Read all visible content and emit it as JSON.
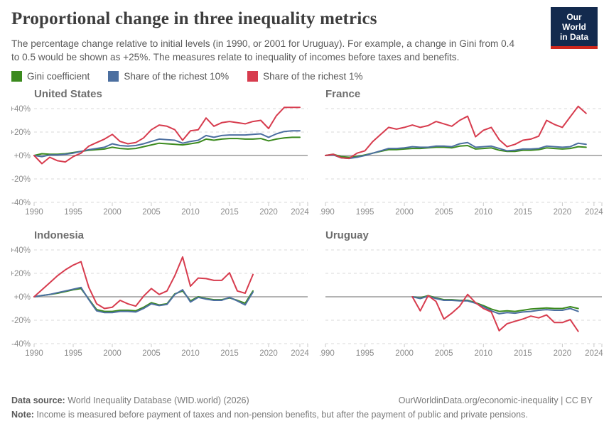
{
  "header": {
    "title": "Proportional change in three inequality metrics",
    "subtitle": "The percentage change relative to initial levels (in 1990, or 2001 for Uruguay). For example, a change in Gini from 0.4 to 0.5 would be shown as +25%. The measures relate to inequality of incomes before taxes and benefits.",
    "logo": {
      "line1": "Our World",
      "line2": "in Data",
      "bg_color": "#132A4E",
      "accent_color": "#CE261C"
    }
  },
  "legend": [
    {
      "label": "Gini coefficient",
      "color": "#3B8A1E"
    },
    {
      "label": "Share of the richest 10%",
      "color": "#4C6FA0"
    },
    {
      "label": "Share of the richest 1%",
      "color": "#D73C4E"
    }
  ],
  "axis": {
    "y_ticks": [
      "+40%",
      "+20%",
      "+0%",
      "-20%",
      "-40%"
    ],
    "y_values": [
      40,
      20,
      0,
      -20,
      -40
    ],
    "x_ticks": [
      1990,
      1995,
      2000,
      2005,
      2010,
      2015,
      2020,
      2024
    ],
    "x_range": [
      1990,
      2025
    ],
    "ylim": [
      -45,
      45
    ],
    "grid": "dashed horizontal lines at ±20% and ±40%, solid gray zero line"
  },
  "chart_data": [
    {
      "type": "line",
      "title": "United States",
      "x": [
        1990,
        1991,
        1992,
        1993,
        1994,
        1995,
        1996,
        1997,
        1998,
        1999,
        2000,
        2001,
        2002,
        2003,
        2004,
        2005,
        2006,
        2007,
        2008,
        2009,
        2010,
        2011,
        2012,
        2013,
        2014,
        2015,
        2016,
        2017,
        2018,
        2019,
        2020,
        2021,
        2022,
        2023,
        2024
      ],
      "series": [
        {
          "name": "Gini coefficient",
          "color": "#3B8A1E",
          "values": [
            0,
            1.5,
            1,
            1,
            1.5,
            2.5,
            3.5,
            4.5,
            5,
            5.5,
            7,
            6,
            5.5,
            6,
            7.5,
            9,
            10.5,
            10,
            9.5,
            9,
            10,
            11,
            14,
            13,
            14,
            14.5,
            14.5,
            14,
            14,
            14.5,
            12.5,
            14,
            15,
            15.5,
            15.5
          ]
        },
        {
          "name": "Share of the richest 10%",
          "color": "#4C6FA0",
          "values": [
            0,
            -1,
            0.5,
            0.5,
            1,
            2,
            3.5,
            5,
            6,
            7,
            10,
            8.5,
            8,
            8.5,
            10,
            12,
            14,
            13.5,
            13,
            10.5,
            12,
            13,
            17,
            15.5,
            17,
            17.5,
            17.5,
            17.5,
            18,
            18.5,
            15.5,
            18.5,
            20.5,
            21,
            21
          ]
        },
        {
          "name": "Share of the richest 1%",
          "color": "#D73C4E",
          "values": [
            0,
            -7,
            -1.5,
            -4.5,
            -5.5,
            -1,
            2,
            8,
            11,
            14,
            18,
            12,
            10,
            11,
            15,
            22,
            26,
            25,
            22,
            13,
            21,
            22,
            32,
            25,
            28,
            29,
            28,
            27,
            29,
            30,
            23,
            34,
            41,
            41,
            41
          ]
        }
      ]
    },
    {
      "type": "line",
      "title": "France",
      "x": [
        1990,
        1991,
        1992,
        1993,
        1994,
        1995,
        1996,
        1997,
        1998,
        1999,
        2000,
        2001,
        2002,
        2003,
        2004,
        2005,
        2006,
        2007,
        2008,
        2009,
        2010,
        2011,
        2012,
        2013,
        2014,
        2015,
        2016,
        2017,
        2018,
        2019,
        2020,
        2021,
        2022,
        2023
      ],
      "series": [
        {
          "name": "Gini coefficient",
          "color": "#3B8A1E",
          "values": [
            0,
            1,
            -1,
            -1.5,
            -1,
            0.5,
            2,
            3.5,
            5,
            5,
            5.5,
            6,
            6,
            6.5,
            7,
            7,
            6.5,
            8,
            8.5,
            5.5,
            6,
            6.5,
            4.5,
            3.5,
            3.5,
            4.5,
            4.5,
            5,
            6.5,
            6,
            5.5,
            6,
            7.5,
            7
          ]
        },
        {
          "name": "Share of the richest 10%",
          "color": "#4C6FA0",
          "values": [
            0,
            0.5,
            -2,
            -2.5,
            -1.5,
            0,
            2,
            4,
            6,
            6,
            6.5,
            7.5,
            7,
            7,
            8,
            8,
            7.5,
            10,
            11,
            7,
            7.5,
            8,
            6,
            4,
            4.5,
            5.5,
            5.5,
            6,
            8,
            7.5,
            7,
            7.5,
            10.5,
            9.5
          ]
        },
        {
          "name": "Share of the richest 1%",
          "color": "#D73C4E",
          "values": [
            0,
            1,
            -2,
            -2.5,
            2,
            4,
            12,
            18,
            24,
            22.5,
            24,
            26,
            24,
            25.5,
            29,
            27,
            25,
            30,
            33.5,
            16,
            21.5,
            24,
            13.5,
            7.5,
            9.5,
            13,
            14,
            16.5,
            30,
            26.5,
            24,
            33,
            42,
            36
          ]
        }
      ]
    },
    {
      "type": "line",
      "title": "Indonesia",
      "x": [
        1990,
        1991,
        1992,
        1993,
        1994,
        1995,
        1996,
        1997,
        1998,
        1999,
        2000,
        2001,
        2002,
        2003,
        2004,
        2005,
        2006,
        2007,
        2008,
        2009,
        2010,
        2011,
        2012,
        2013,
        2014,
        2015,
        2016,
        2017,
        2018
      ],
      "series": [
        {
          "name": "Gini coefficient",
          "color": "#3B8A1E",
          "values": [
            0,
            1,
            2,
            3,
            4.5,
            6,
            7,
            -2,
            -11,
            -12.5,
            -12.5,
            -11.5,
            -11.5,
            -12,
            -9,
            -5,
            -7,
            -6,
            2.5,
            5,
            -3.5,
            0,
            -1.5,
            -2.5,
            -2.5,
            -1,
            -3,
            -5.5,
            5
          ]
        },
        {
          "name": "Share of the richest 10%",
          "color": "#4C6FA0",
          "values": [
            0,
            1,
            2,
            3.5,
            5,
            6.5,
            8,
            -2.5,
            -12,
            -13.5,
            -13.5,
            -12.5,
            -12.5,
            -13,
            -10,
            -6,
            -7.5,
            -6.5,
            2,
            6,
            -4.5,
            -0.5,
            -2,
            -3,
            -3,
            -0.5,
            -3.5,
            -7,
            4
          ]
        },
        {
          "name": "Share of the richest 1%",
          "color": "#D73C4E",
          "values": [
            0,
            6,
            12,
            18,
            23,
            27,
            30,
            8,
            -6,
            -10,
            -9,
            -3,
            -6,
            -8,
            0.5,
            7,
            2,
            5,
            18,
            34,
            9,
            16,
            15.5,
            14,
            14,
            20.5,
            5,
            3,
            19
          ]
        }
      ]
    },
    {
      "type": "line",
      "title": "Uruguay",
      "x": [
        2001,
        2002,
        2003,
        2004,
        2005,
        2006,
        2007,
        2008,
        2009,
        2010,
        2011,
        2012,
        2013,
        2014,
        2015,
        2016,
        2017,
        2018,
        2019,
        2020,
        2021,
        2022
      ],
      "series": [
        {
          "name": "Gini coefficient",
          "color": "#3B8A1E",
          "values": [
            0,
            -1,
            1,
            -1,
            -2.5,
            -2.5,
            -3,
            -3,
            -5,
            -7.5,
            -10.5,
            -12.5,
            -12,
            -12.5,
            -11.5,
            -10.5,
            -10,
            -9.5,
            -10,
            -10,
            -8.5,
            -10
          ]
        },
        {
          "name": "Share of the richest 10%",
          "color": "#4C6FA0",
          "values": [
            0,
            -1.5,
            0.5,
            -1.5,
            -3,
            -3,
            -3.5,
            -3.5,
            -5.5,
            -8.5,
            -12,
            -14.5,
            -13.5,
            -14,
            -13,
            -12.5,
            -11.5,
            -11,
            -11.5,
            -11.5,
            -10,
            -12.5
          ]
        },
        {
          "name": "Share of the richest 1%",
          "color": "#D73C4E",
          "values": [
            0,
            -12,
            1,
            -4,
            -19,
            -14,
            -8,
            2,
            -5,
            -10,
            -13,
            -29,
            -23,
            -21,
            -19,
            -16.5,
            -18,
            -15.5,
            -22,
            -22,
            -19.5,
            -29.5
          ]
        }
      ]
    }
  ],
  "footer": {
    "data_source_label": "Data source:",
    "data_source_text": " World Inequality Database (WID.world) (2026)",
    "link": "OurWorldinData.org/economic-inequality | CC BY",
    "note_label": "Note:",
    "note_text": " Income is measured before payment of taxes and non-pension benefits, but after the payment of public and private pensions."
  },
  "colors": {
    "grid_dashed": "#d9d9d9",
    "zero_line": "#b3b3b3",
    "axis_text": "#8c8c8c",
    "tick": "#c9c9c9"
  }
}
